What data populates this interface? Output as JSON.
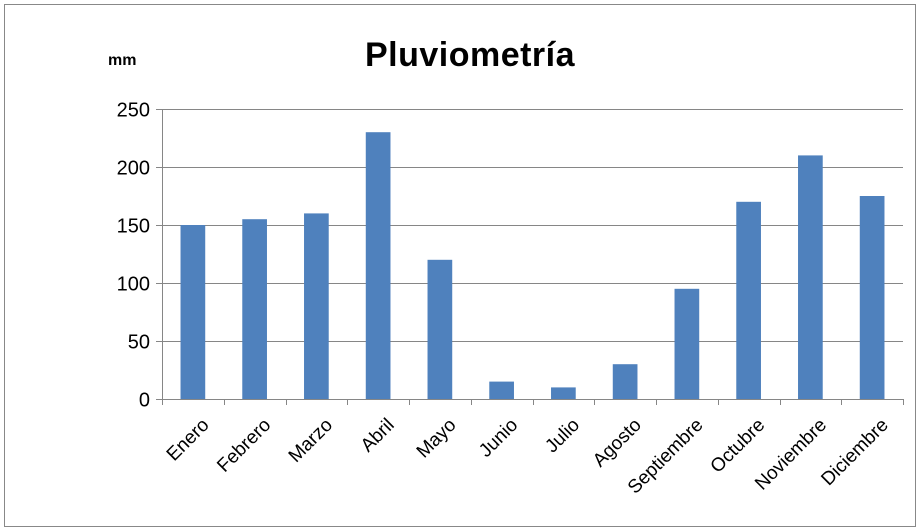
{
  "chart_data": {
    "type": "bar",
    "title": "Pluviometría",
    "unit_label": "mm",
    "xlabel": "",
    "ylabel": "",
    "categories": [
      "Enero",
      "Febrero",
      "Marzo",
      "Abril",
      "Mayo",
      "Junio",
      "Julio",
      "Agosto",
      "Septiembre",
      "Octubre",
      "Noviembre",
      "Diciembre"
    ],
    "values": [
      150,
      155,
      160,
      230,
      120,
      15,
      10,
      30,
      95,
      170,
      210,
      175
    ],
    "ylim": [
      0,
      250
    ],
    "yticks": [
      0,
      50,
      100,
      150,
      200,
      250
    ],
    "grid": true,
    "legend": "none",
    "bar_color": "#4F81BD",
    "grid_color": "#868686"
  }
}
